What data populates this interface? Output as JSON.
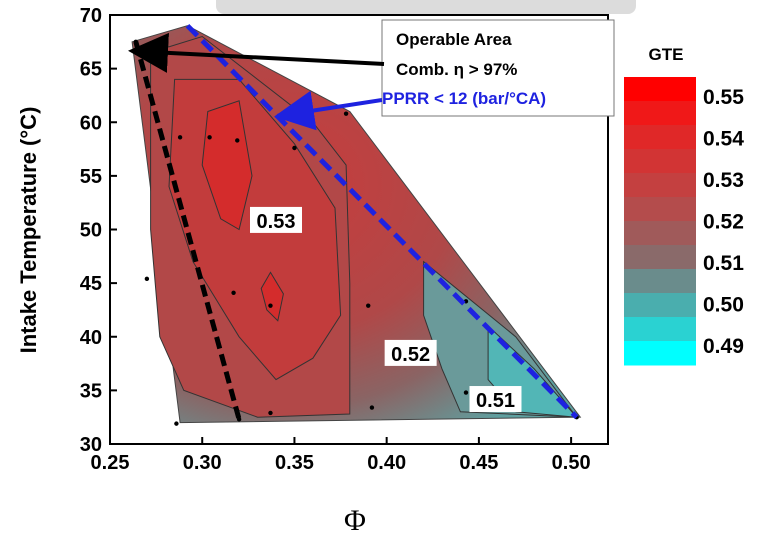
{
  "chart_data": {
    "type": "heatmap",
    "title_fragment": "",
    "xlabel": "Φ",
    "ylabel": "Intake Temperature (°C)",
    "xlim": [
      0.25,
      0.52
    ],
    "ylim": [
      30,
      70
    ],
    "x_ticks": [
      "0.25",
      "0.30",
      "0.35",
      "0.40",
      "0.45",
      "0.50"
    ],
    "y_ticks": [
      "30",
      "35",
      "40",
      "45",
      "50",
      "55",
      "60",
      "65",
      "70"
    ],
    "region_boundary": [
      [
        0.262,
        67.5
      ],
      [
        0.292,
        69
      ],
      [
        0.38,
        61
      ],
      [
        0.505,
        32.5
      ],
      [
        0.288,
        32
      ]
    ],
    "contour_labels": [
      {
        "text": "0.53",
        "x": 0.34,
        "y": 50.8
      },
      {
        "text": "0.52",
        "x": 0.413,
        "y": 38.4
      },
      {
        "text": "0.51",
        "x": 0.459,
        "y": 34.1
      }
    ],
    "data_points": [
      [
        0.264,
        67.5
      ],
      [
        0.288,
        58.6
      ],
      [
        0.304,
        58.6
      ],
      [
        0.319,
        58.3
      ],
      [
        0.35,
        57.6
      ],
      [
        0.378,
        60.8
      ],
      [
        0.27,
        45.4
      ],
      [
        0.317,
        44.1
      ],
      [
        0.337,
        42.9
      ],
      [
        0.39,
        42.9
      ],
      [
        0.443,
        43.3
      ],
      [
        0.286,
        31.9
      ],
      [
        0.32,
        32.3
      ],
      [
        0.337,
        32.9
      ],
      [
        0.392,
        33.4
      ],
      [
        0.443,
        34.8
      ],
      [
        0.503,
        32.5
      ]
    ],
    "annotations": {
      "box_lines": [
        "Operable Area",
        "Comb. η > 97%",
        "PPRR < 12 (bar/°CA)"
      ],
      "black_line": [
        [
          0.264,
          67.5
        ],
        [
          0.32,
          32.3
        ]
      ],
      "blue_line": [
        [
          0.292,
          69
        ],
        [
          0.503,
          32.5
        ]
      ]
    },
    "legend": {
      "title": "GTE",
      "labels": [
        "0.55",
        "0.54",
        "0.53",
        "0.52",
        "0.51",
        "0.50",
        "0.49"
      ],
      "colors": [
        "#ff0000",
        "#e6262a",
        "#c94040",
        "#a25a5a",
        "#7f7f7f",
        "#4fb3b3",
        "#00ffff"
      ]
    }
  }
}
